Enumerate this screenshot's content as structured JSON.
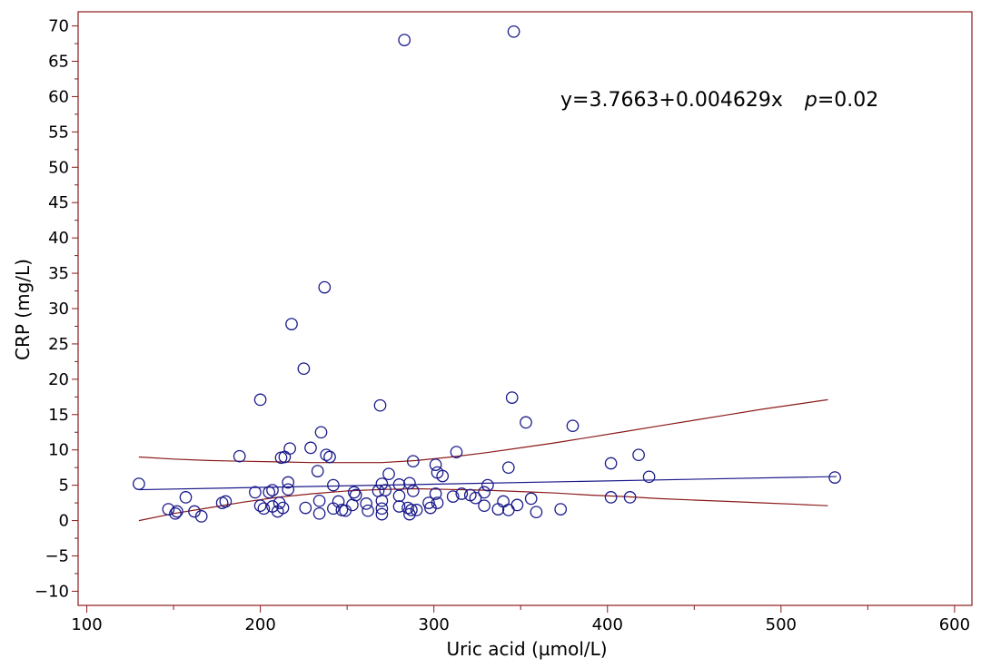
{
  "chart_data": {
    "type": "scatter",
    "title": "",
    "xlabel": "Uric acid (µmol/L)",
    "ylabel": "CRP (mg/L)",
    "xlim": [
      95,
      610
    ],
    "ylim": [
      -12,
      72
    ],
    "x_ticks": [
      100,
      200,
      300,
      400,
      500,
      600
    ],
    "y_ticks": [
      70,
      65,
      60,
      55,
      50,
      45,
      40,
      35,
      30,
      25,
      20,
      15,
      10,
      5,
      0,
      -5,
      -10
    ],
    "grid": false,
    "legend": "none",
    "annotation": {
      "equation": "y=3.7663+0.004629x",
      "p_symbol": "p",
      "p_value": "=0.02"
    },
    "colors": {
      "frame": "#8b1a1a",
      "points": "#1a1a8b",
      "regression": "#1a1a8b",
      "confidence_band": "#8b1a1a"
    },
    "regression_line": {
      "intercept": 3.7663,
      "slope": 0.004629,
      "x_range": [
        130,
        532
      ]
    },
    "confidence_band": {
      "x": [
        130,
        150,
        170,
        190,
        210,
        230,
        250,
        270,
        290,
        310,
        330,
        350,
        370,
        390,
        410,
        430,
        450,
        470,
        490,
        510,
        527
      ],
      "upper": [
        9.0,
        8.7,
        8.5,
        8.4,
        8.3,
        8.2,
        8.2,
        8.2,
        8.5,
        9.0,
        9.6,
        10.3,
        11.0,
        11.8,
        12.6,
        13.4,
        14.2,
        15.0,
        15.8,
        16.5,
        17.1
      ],
      "lower": [
        0.0,
        1.0,
        1.8,
        2.6,
        3.3,
        3.8,
        4.2,
        4.4,
        4.5,
        4.4,
        4.3,
        4.1,
        3.9,
        3.6,
        3.4,
        3.1,
        2.9,
        2.7,
        2.5,
        2.3,
        2.1
      ]
    },
    "points": [
      {
        "x": 130,
        "y": 5.2
      },
      {
        "x": 147,
        "y": 1.6
      },
      {
        "x": 151,
        "y": 1.0
      },
      {
        "x": 152,
        "y": 1.3
      },
      {
        "x": 157,
        "y": 3.3
      },
      {
        "x": 162,
        "y": 1.3
      },
      {
        "x": 166,
        "y": 0.6
      },
      {
        "x": 178,
        "y": 2.5
      },
      {
        "x": 180,
        "y": 2.7
      },
      {
        "x": 188,
        "y": 9.1
      },
      {
        "x": 197,
        "y": 4.0
      },
      {
        "x": 200,
        "y": 17.1
      },
      {
        "x": 200,
        "y": 2.1
      },
      {
        "x": 202,
        "y": 1.7
      },
      {
        "x": 205,
        "y": 4.0
      },
      {
        "x": 207,
        "y": 4.3
      },
      {
        "x": 207,
        "y": 2.0
      },
      {
        "x": 210,
        "y": 1.3
      },
      {
        "x": 211,
        "y": 2.5
      },
      {
        "x": 212,
        "y": 8.9
      },
      {
        "x": 213,
        "y": 1.8
      },
      {
        "x": 214,
        "y": 9.0
      },
      {
        "x": 216,
        "y": 4.4
      },
      {
        "x": 216,
        "y": 5.4
      },
      {
        "x": 217,
        "y": 10.2
      },
      {
        "x": 218,
        "y": 27.8
      },
      {
        "x": 225,
        "y": 21.5
      },
      {
        "x": 226,
        "y": 1.8
      },
      {
        "x": 229,
        "y": 10.3
      },
      {
        "x": 233,
        "y": 7.0
      },
      {
        "x": 234,
        "y": 1.0
      },
      {
        "x": 234,
        "y": 2.8
      },
      {
        "x": 235,
        "y": 12.5
      },
      {
        "x": 237,
        "y": 33.0
      },
      {
        "x": 238,
        "y": 9.3
      },
      {
        "x": 240,
        "y": 9.0
      },
      {
        "x": 242,
        "y": 1.7
      },
      {
        "x": 242,
        "y": 5.0
      },
      {
        "x": 245,
        "y": 2.7
      },
      {
        "x": 247,
        "y": 1.5
      },
      {
        "x": 249,
        "y": 1.4
      },
      {
        "x": 253,
        "y": 2.2
      },
      {
        "x": 254,
        "y": 4.0
      },
      {
        "x": 255,
        "y": 3.6
      },
      {
        "x": 261,
        "y": 2.4
      },
      {
        "x": 262,
        "y": 1.4
      },
      {
        "x": 268,
        "y": 4.2
      },
      {
        "x": 269,
        "y": 16.3
      },
      {
        "x": 270,
        "y": 2.8
      },
      {
        "x": 270,
        "y": 5.2
      },
      {
        "x": 270,
        "y": 1.7
      },
      {
        "x": 270,
        "y": 0.9
      },
      {
        "x": 272,
        "y": 4.3
      },
      {
        "x": 274,
        "y": 6.6
      },
      {
        "x": 280,
        "y": 3.5
      },
      {
        "x": 280,
        "y": 5.1
      },
      {
        "x": 280,
        "y": 2.0
      },
      {
        "x": 283,
        "y": 68.0
      },
      {
        "x": 285,
        "y": 1.8
      },
      {
        "x": 286,
        "y": 0.9
      },
      {
        "x": 286,
        "y": 5.3
      },
      {
        "x": 287,
        "y": 1.5
      },
      {
        "x": 288,
        "y": 8.4
      },
      {
        "x": 288,
        "y": 4.2
      },
      {
        "x": 290,
        "y": 1.5
      },
      {
        "x": 297,
        "y": 2.5
      },
      {
        "x": 298,
        "y": 1.8
      },
      {
        "x": 301,
        "y": 3.8
      },
      {
        "x": 301,
        "y": 7.9
      },
      {
        "x": 302,
        "y": 6.8
      },
      {
        "x": 302,
        "y": 2.5
      },
      {
        "x": 305,
        "y": 6.3
      },
      {
        "x": 311,
        "y": 3.4
      },
      {
        "x": 313,
        "y": 9.7
      },
      {
        "x": 316,
        "y": 3.8
      },
      {
        "x": 321,
        "y": 3.6
      },
      {
        "x": 324,
        "y": 3.2
      },
      {
        "x": 329,
        "y": 4.0
      },
      {
        "x": 329,
        "y": 2.1
      },
      {
        "x": 331,
        "y": 5.0
      },
      {
        "x": 337,
        "y": 1.6
      },
      {
        "x": 340,
        "y": 2.7
      },
      {
        "x": 343,
        "y": 1.5
      },
      {
        "x": 343,
        "y": 7.5
      },
      {
        "x": 345,
        "y": 17.4
      },
      {
        "x": 346,
        "y": 69.2
      },
      {
        "x": 348,
        "y": 2.2
      },
      {
        "x": 353,
        "y": 13.9
      },
      {
        "x": 356,
        "y": 3.1
      },
      {
        "x": 359,
        "y": 1.2
      },
      {
        "x": 373,
        "y": 1.6
      },
      {
        "x": 380,
        "y": 13.4
      },
      {
        "x": 402,
        "y": 3.3
      },
      {
        "x": 402,
        "y": 8.1
      },
      {
        "x": 413,
        "y": 3.3
      },
      {
        "x": 418,
        "y": 9.3
      },
      {
        "x": 424,
        "y": 6.2
      },
      {
        "x": 531,
        "y": 6.1
      }
    ]
  }
}
